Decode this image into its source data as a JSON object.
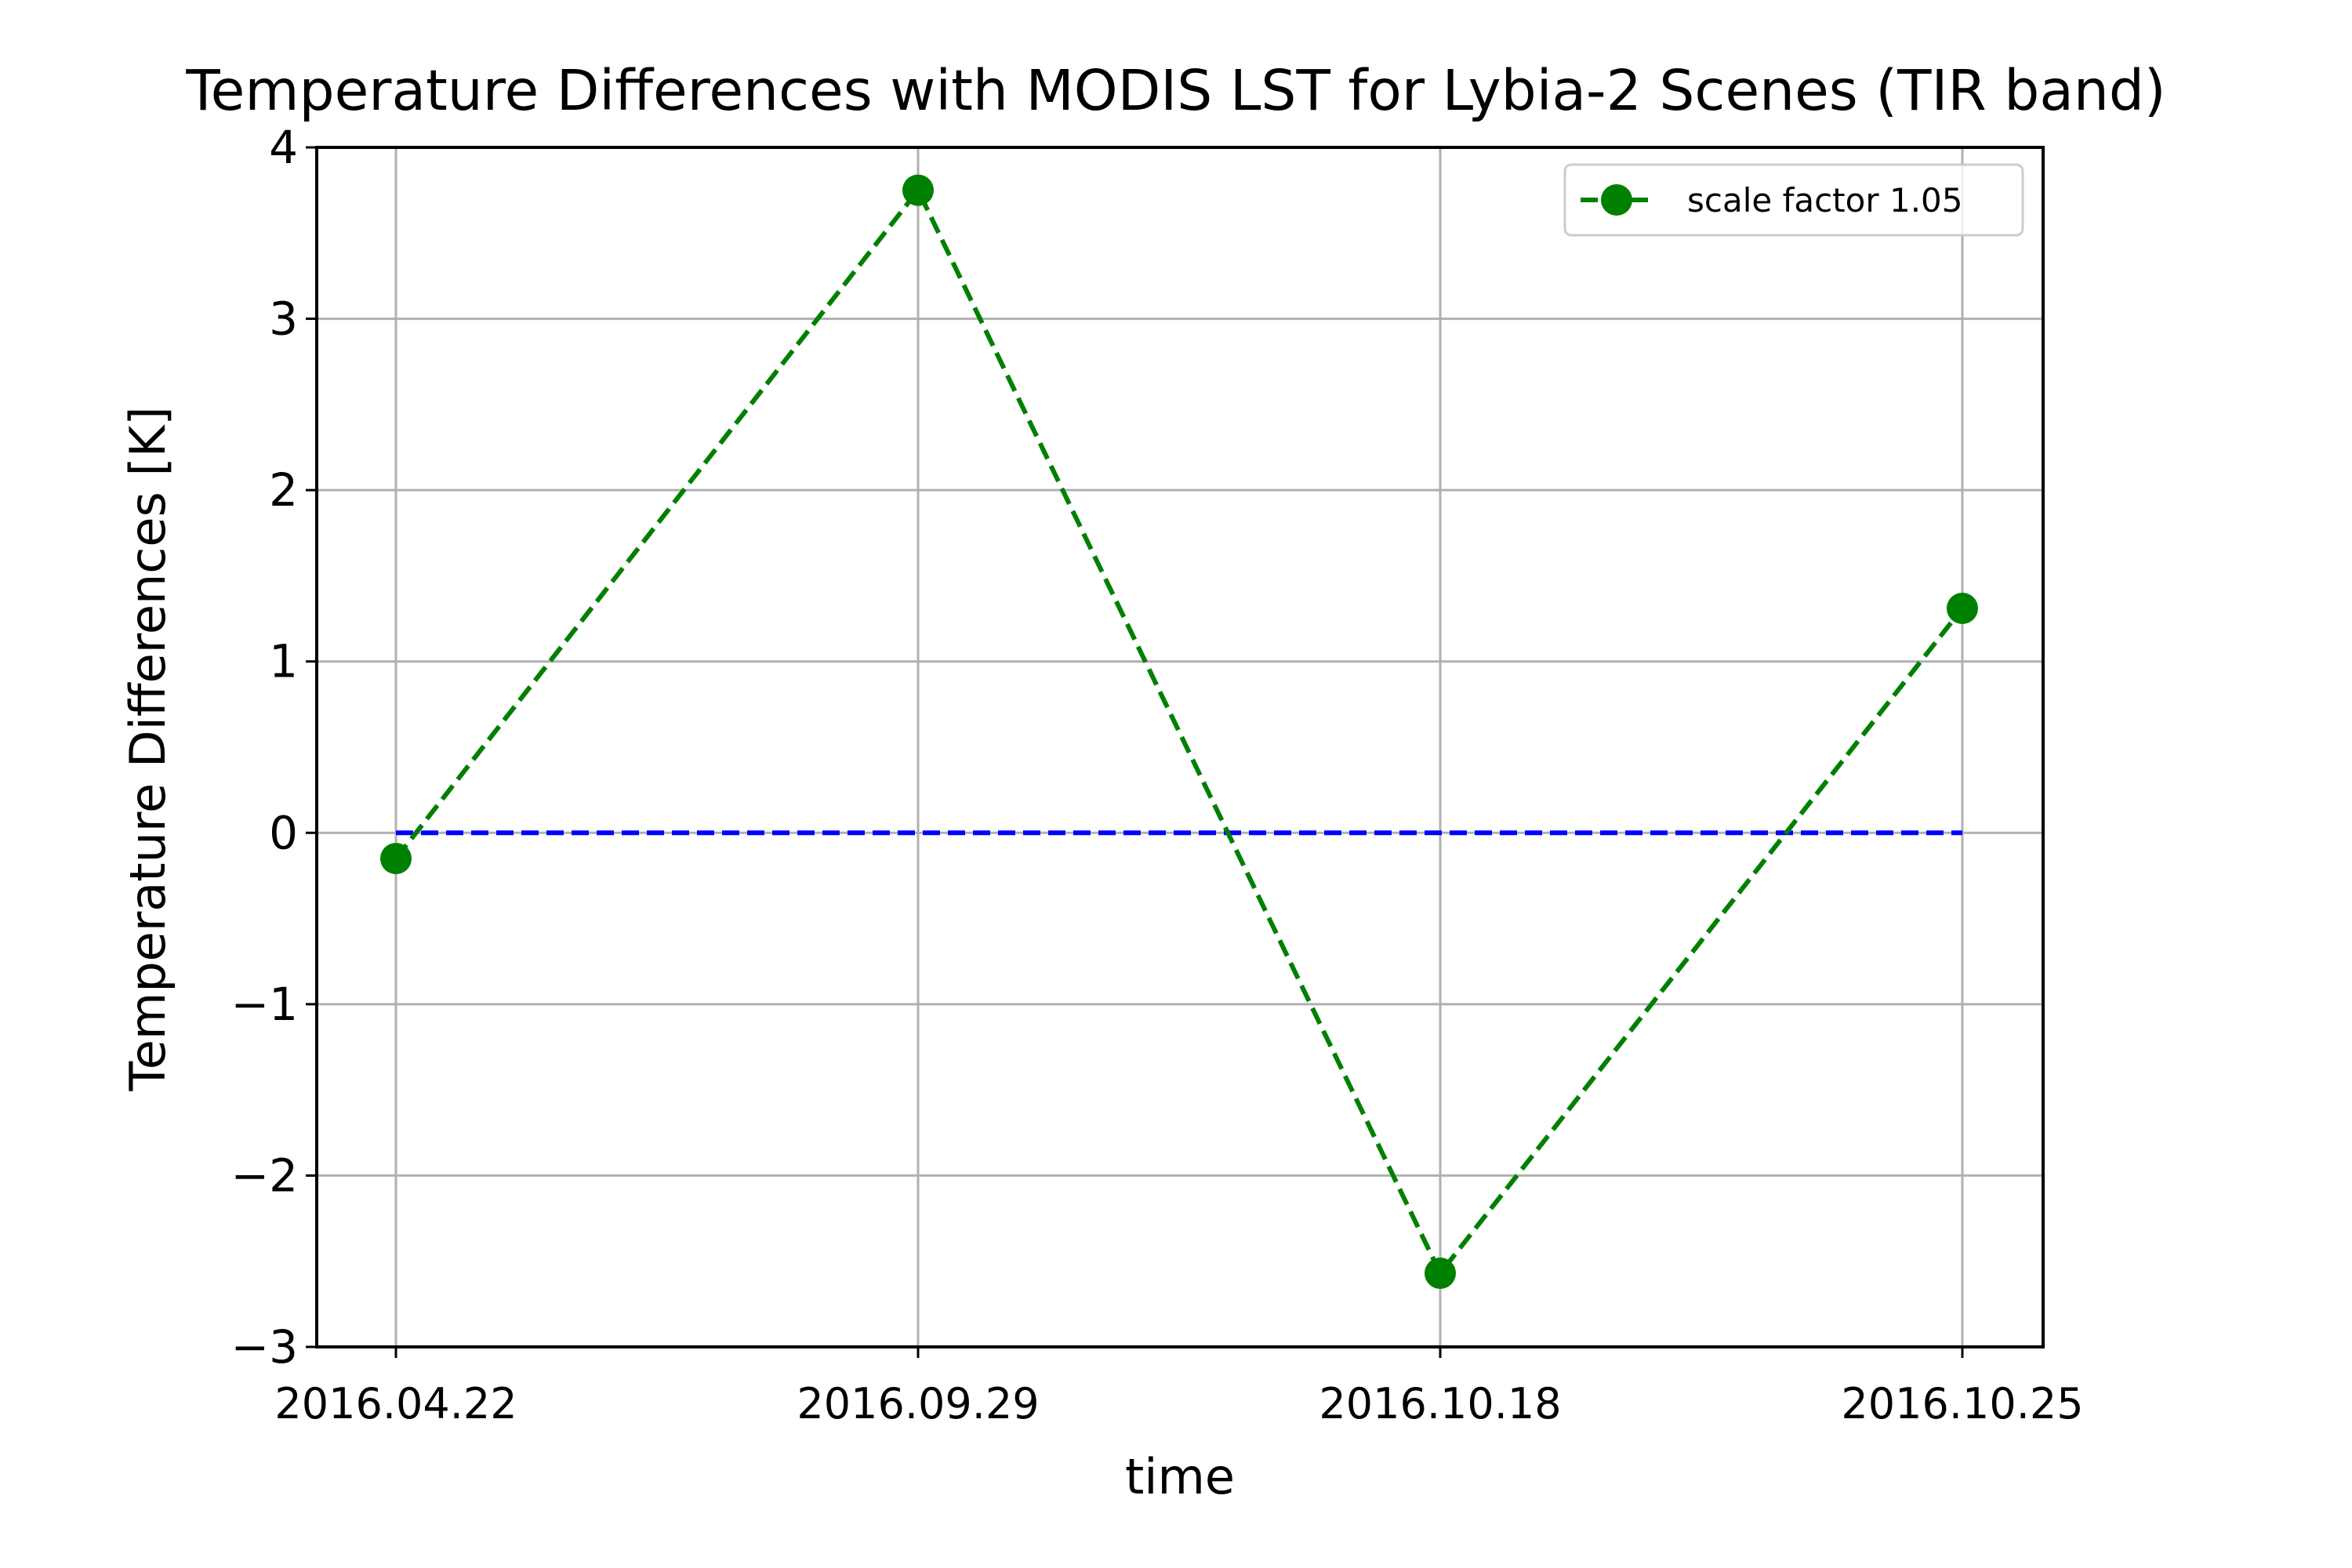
{
  "chart_data": {
    "type": "line",
    "title": "Temperature Differences with MODIS LST for Lybia-2 Scenes (TIR band)",
    "xlabel": "time",
    "ylabel": "Temperature Differences [K]",
    "categories": [
      "2016.04.22",
      "2016.09.29",
      "2016.10.18",
      "2016.10.25"
    ],
    "ylim": [
      -3,
      4
    ],
    "yticks": [
      -3,
      -2,
      -1,
      0,
      1,
      2,
      3,
      4
    ],
    "ytick_labels": [
      "−3",
      "−2",
      "−1",
      "0",
      "1",
      "2",
      "3",
      "4"
    ],
    "grid": true,
    "legend_position": "top-right",
    "series": [
      {
        "name": "scale factor 1.05",
        "values": [
          -0.15,
          3.75,
          -2.57,
          1.31
        ],
        "color": "#008000",
        "line_style": "dashed",
        "marker": "circle"
      }
    ],
    "reference_line": {
      "y": 0,
      "color": "#0000ff",
      "line_style": "dashed"
    }
  }
}
